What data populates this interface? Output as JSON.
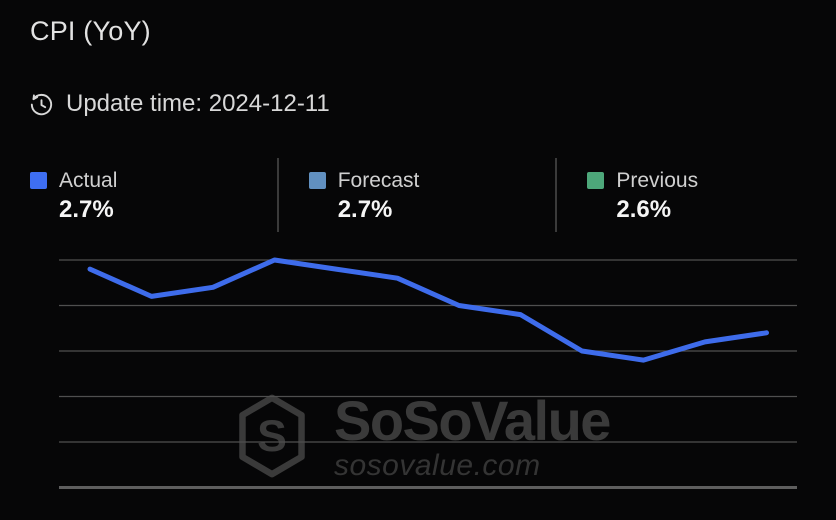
{
  "card": {
    "title": "CPI (YoY)",
    "update_label": "Update time: 2024-12-11"
  },
  "legend": {
    "items": [
      {
        "label": "Actual",
        "value": "2.7%",
        "color": "#3e6ef2"
      },
      {
        "label": "Forecast",
        "value": "2.7%",
        "color": "#6190c0"
      },
      {
        "label": "Previous",
        "value": "2.6%",
        "color": "#4da77a"
      }
    ]
  },
  "chart_data": {
    "type": "line",
    "title": "CPI (YoY)",
    "series": [
      {
        "name": "Actual",
        "color": "#3e6ceb",
        "values": [
          3.4,
          3.1,
          3.2,
          3.5,
          3.4,
          3.3,
          3.0,
          2.9,
          2.5,
          2.4,
          2.6,
          2.7
        ]
      }
    ],
    "x_tick_labels_visible": false,
    "y_tick_labels_visible": false,
    "gridline_values": [
      3.5,
      3.0,
      2.5,
      2.0,
      1.5,
      1.0
    ],
    "ylim": [
      0.75,
      3.75
    ],
    "grid": "horizontal",
    "last_point_matches": {
      "actual": "2.7%",
      "previous": "2.6%"
    }
  },
  "watermark": {
    "brand": "SoSoValue",
    "domain": "sosovalue.com"
  },
  "colors": {
    "background": "#060607",
    "gridline": "#4f4f4f",
    "axis_line": "#5e5e5e",
    "title_text": "#e2e2e2",
    "muted_text": "#d8d8d8",
    "value_text": "#f5f5f5",
    "watermark": "#3a3a3a"
  }
}
